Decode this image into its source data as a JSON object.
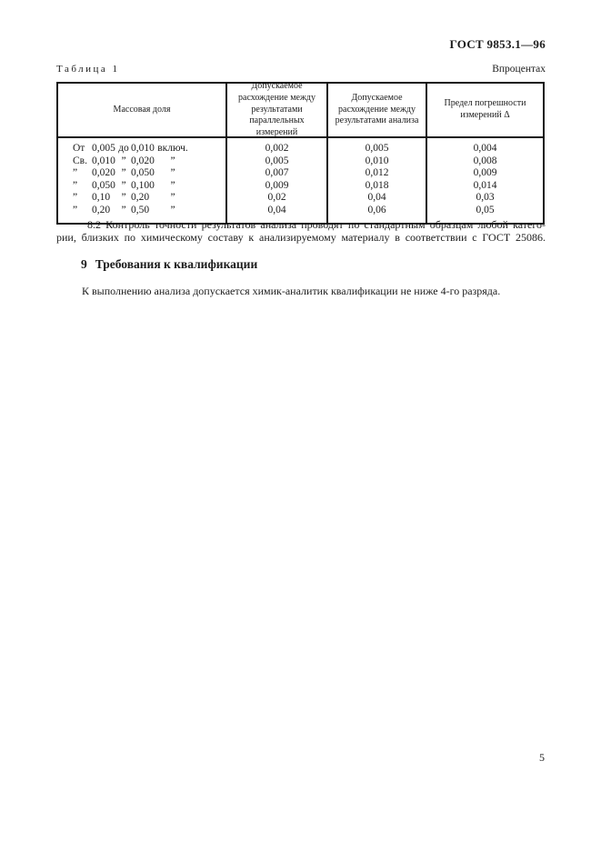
{
  "header": {
    "doc_number": "ГОСТ 9853.1—96"
  },
  "table": {
    "caption": "Таблица 1",
    "units": "Впроцентах",
    "columns": [
      {
        "lines": [
          "Массовая доля"
        ]
      },
      {
        "lines": [
          "Допускаемое",
          "расхождение между",
          "результатами",
          "параллельных измерений"
        ]
      },
      {
        "lines": [
          "Допускаемое",
          "расхождение между",
          "результатами анализа"
        ]
      },
      {
        "lines": [
          "Предел погрешности",
          "измерений Δ"
        ]
      }
    ],
    "rows": [
      {
        "c1": [
          "От",
          "0,005",
          "до",
          "0,010",
          "включ."
        ],
        "c2": "0,002",
        "c3": "0,005",
        "c4": "0,004"
      },
      {
        "c1": [
          "Св.",
          "0,010",
          "”",
          "0,020",
          "”"
        ],
        "c2": "0,005",
        "c3": "0,010",
        "c4": "0,008"
      },
      {
        "c1": [
          "”",
          "0,020",
          "”",
          "0,050",
          "”"
        ],
        "c2": "0,007",
        "c3": "0,012",
        "c4": "0,009"
      },
      {
        "c1": [
          "”",
          "0,050",
          "”",
          "0,100",
          "”"
        ],
        "c2": "0,009",
        "c3": "0,018",
        "c4": "0,014"
      },
      {
        "c1": [
          "”",
          "0,10",
          "”",
          "0,20",
          "”"
        ],
        "c2": "0,02",
        "c3": "0,04",
        "c4": "0,03"
      },
      {
        "c1": [
          "”",
          "0,20",
          "”",
          "0,50",
          "”"
        ],
        "c2": "0,04",
        "c3": "0,06",
        "c4": "0,05"
      }
    ]
  },
  "section_8_2": {
    "line1": "8.2  Контроль точности результатов анализа проводят по стандартным образцам любой катего-",
    "line2": "рии, близких по химическому составу к анализируемому материалу в соответствии с ГОСТ 25086."
  },
  "section_9": {
    "number": "9",
    "title": "Требования к квалификации",
    "body": "К выполнению анализа допускается химик-аналитик квалификации не ниже 4-го разряда."
  },
  "footer": {
    "page_number": "5"
  }
}
